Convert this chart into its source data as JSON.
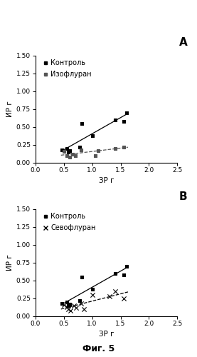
{
  "panel_A": {
    "label": "A",
    "ylabel": "ИР г",
    "xlabel": "ЗР г",
    "xlim": [
      0.0,
      2.5
    ],
    "ylim": [
      0.0,
      1.5
    ],
    "xticks": [
      0.0,
      0.5,
      1.0,
      1.5,
      2.0,
      2.5
    ],
    "yticks": [
      0.0,
      0.25,
      0.5,
      0.75,
      1.0,
      1.25,
      1.5
    ],
    "series": [
      {
        "name": "Контроль",
        "marker": "s",
        "markersize": 3.5,
        "color": "#000000",
        "linestyle": "-",
        "x": [
          0.47,
          0.55,
          0.58,
          0.6,
          0.78,
          0.82,
          1.0,
          1.4,
          1.55,
          1.6
        ],
        "y": [
          0.18,
          0.2,
          0.15,
          0.17,
          0.22,
          0.55,
          0.38,
          0.6,
          0.58,
          0.7
        ],
        "trend_x": [
          0.45,
          1.63
        ]
      },
      {
        "name": "Изофлуран",
        "marker": "s",
        "markersize": 3.5,
        "color": "#555555",
        "linestyle": "--",
        "x": [
          0.5,
          0.55,
          0.6,
          0.65,
          0.7,
          0.8,
          1.05,
          1.1,
          1.4,
          1.55
        ],
        "y": [
          0.16,
          0.1,
          0.08,
          0.12,
          0.1,
          0.18,
          0.1,
          0.17,
          0.2,
          0.22
        ],
        "trend_x": [
          0.45,
          1.63
        ]
      }
    ]
  },
  "panel_B": {
    "label": "B",
    "ylabel": "ИР г",
    "xlabel": "ЗР г",
    "xlim": [
      0.0,
      2.5
    ],
    "ylim": [
      0.0,
      1.5
    ],
    "xticks": [
      0.0,
      0.5,
      1.0,
      1.5,
      2.0,
      2.5
    ],
    "yticks": [
      0.0,
      0.25,
      0.5,
      0.75,
      1.0,
      1.25,
      1.5
    ],
    "series": [
      {
        "name": "Контроль",
        "marker": "s",
        "markersize": 3.5,
        "color": "#000000",
        "linestyle": "-",
        "x": [
          0.47,
          0.55,
          0.58,
          0.6,
          0.78,
          0.82,
          1.0,
          1.4,
          1.55,
          1.6
        ],
        "y": [
          0.18,
          0.2,
          0.15,
          0.17,
          0.22,
          0.55,
          0.38,
          0.6,
          0.58,
          0.7
        ],
        "trend_x": [
          0.45,
          1.63
        ]
      },
      {
        "name": "Севофлуран",
        "marker": "x",
        "markersize": 4.5,
        "color": "#000000",
        "linestyle": "--",
        "x": [
          0.5,
          0.55,
          0.58,
          0.62,
          0.68,
          0.72,
          0.8,
          0.85,
          1.0,
          1.3,
          1.4,
          1.55
        ],
        "y": [
          0.16,
          0.13,
          0.1,
          0.08,
          0.15,
          0.12,
          0.18,
          0.1,
          0.3,
          0.28,
          0.35,
          0.25
        ],
        "trend_x": [
          0.45,
          1.63
        ]
      }
    ]
  },
  "fig_label": "Фиг. 5",
  "background_color": "#ffffff",
  "font_color": "#000000"
}
